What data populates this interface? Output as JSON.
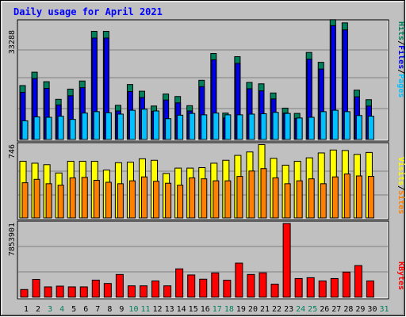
{
  "chart_data": {
    "type": "bar",
    "title": "Daily usage for April 2021",
    "categories": [
      "1",
      "2",
      "3",
      "4",
      "5",
      "6",
      "7",
      "8",
      "9",
      "10",
      "11",
      "12",
      "13",
      "14",
      "15",
      "16",
      "17",
      "18",
      "19",
      "20",
      "21",
      "22",
      "23",
      "24",
      "25",
      "26",
      "27",
      "28",
      "29",
      "30",
      "31"
    ],
    "weekend_days": [
      "3",
      "4",
      "10",
      "11",
      "17",
      "18",
      "24",
      "25",
      "31"
    ],
    "colors": {
      "hits": "#00805c",
      "files": "#0000e6",
      "pages": "#00c0ff",
      "visits": "#ffff00",
      "sites": "#ff8000",
      "kbytes": "#ff0000",
      "title": "#0000ff",
      "weekday": "#000000",
      "weekend": "#00805c",
      "panel": "#c0c0c0"
    },
    "panels": {
      "top": {
        "max_label": "33288",
        "ylim": [
          0,
          33288
        ],
        "legend": [
          "Pages",
          "Files",
          "Hits"
        ],
        "series": [
          {
            "name": "Hits",
            "values": [
              15300,
              19100,
              16400,
              11400,
              14300,
              16600,
              30700,
              30700,
              9700,
              15600,
              13700,
              9500,
              12900,
              12200,
              9600,
              16800,
              24400,
              7500,
              23500,
              16200,
              15800,
              13200,
              8900,
              7400,
              24700,
              21900,
              34000,
              33100,
              14000,
              11300,
              0
            ]
          },
          {
            "name": "Files",
            "values": [
              13400,
              17300,
              14500,
              9800,
              12400,
              14700,
              28800,
              28800,
              8100,
              13600,
              11900,
              8000,
              11200,
              10400,
              8100,
              15000,
              22600,
              6100,
              21600,
              14400,
              13800,
              11500,
              7500,
              6000,
              22800,
              20000,
              32300,
              31100,
              12100,
              9500,
              0
            ]
          },
          {
            "name": "Pages",
            "values": [
              5300,
              6400,
              6300,
              6600,
              5700,
              7500,
              7900,
              7600,
              7200,
              8300,
              8600,
              8100,
              5900,
              6900,
              7400,
              7000,
              7500,
              7000,
              7000,
              7200,
              7300,
              7700,
              7400,
              6100,
              6300,
              7900,
              8300,
              7900,
              6800,
              6600,
              0
            ]
          }
        ]
      },
      "middle": {
        "max_label": "746",
        "ylim": [
          0,
          746
        ],
        "legend": [
          "Sites",
          "Visits"
        ],
        "series": [
          {
            "name": "Visits",
            "values": [
              580,
              560,
              545,
              460,
              580,
              580,
              580,
              490,
              565,
              570,
              605,
              590,
              455,
              510,
              510,
              515,
              560,
              590,
              640,
              675,
              750,
              610,
              540,
              580,
              615,
              665,
              695,
              690,
              650,
              670,
              0
            ]
          },
          {
            "name": "Sites",
            "values": [
              360,
              395,
              350,
              335,
              410,
              415,
              385,
              365,
              350,
              380,
              420,
              375,
              355,
              335,
              410,
              400,
              380,
              380,
              425,
              480,
              505,
              410,
              350,
              380,
              400,
              350,
              420,
              450,
              430,
              425,
              0
            ]
          }
        ]
      },
      "bottom": {
        "max_label": "7853901",
        "ylim": [
          0,
          7853901
        ],
        "legend": [
          "KBytes"
        ],
        "series": [
          {
            "name": "KBytes",
            "values": [
              820000,
              1900000,
              1100000,
              1180000,
              1100000,
              1100000,
              1820000,
              1460000,
              2420000,
              1210000,
              1210000,
              1730000,
              1210000,
              3020000,
              2370000,
              1920000,
              2590000,
              1810000,
              3630000,
              2420000,
              2600000,
              1390000,
              7853901,
              1990000,
              2080000,
              1730000,
              1990000,
              2680000,
              3370000,
              1730000,
              0
            ]
          }
        ]
      }
    }
  }
}
